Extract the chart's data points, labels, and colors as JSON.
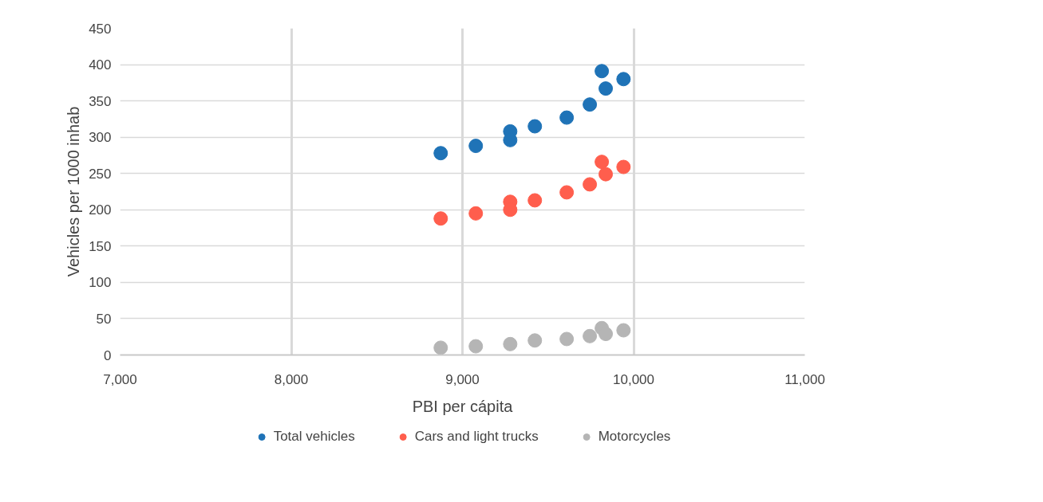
{
  "chart_data": {
    "type": "scatter",
    "xlabel": "PBI per cápita",
    "ylabel": "Vehicles per 1000 inhab",
    "x": [
      8873,
      9078,
      9279,
      9279,
      9423,
      9609,
      9744,
      9814,
      9837,
      9941
    ],
    "series": [
      {
        "name": "Total vehicles",
        "color": "#1f73b7",
        "values": [
          278,
          288,
          308,
          296,
          315,
          327,
          345,
          391,
          367,
          380
        ]
      },
      {
        "name": "Cars and light trucks",
        "color": "#ff5e4d",
        "values": [
          188,
          195,
          211,
          200,
          213,
          224,
          235,
          266,
          249,
          259
        ]
      },
      {
        "name": "Motorcycles",
        "color": "#b5b5b5",
        "values": [
          10,
          12,
          null,
          15,
          20,
          22,
          26,
          37,
          29,
          34
        ]
      }
    ],
    "xlim": [
      7000,
      11000
    ],
    "xticks": [
      {
        "value": 7000,
        "label": "7,000"
      },
      {
        "value": 8000,
        "label": "8,000"
      },
      {
        "value": 9000,
        "label": "9,000"
      },
      {
        "value": 10000,
        "label": "10,000"
      },
      {
        "value": 11000,
        "label": "11,000"
      }
    ],
    "ylim": [
      0,
      450
    ],
    "yticks": [
      0,
      50,
      100,
      150,
      200,
      250,
      300,
      350,
      400,
      450
    ],
    "grid": true,
    "legend": "bottom",
    "marker": "circle"
  }
}
